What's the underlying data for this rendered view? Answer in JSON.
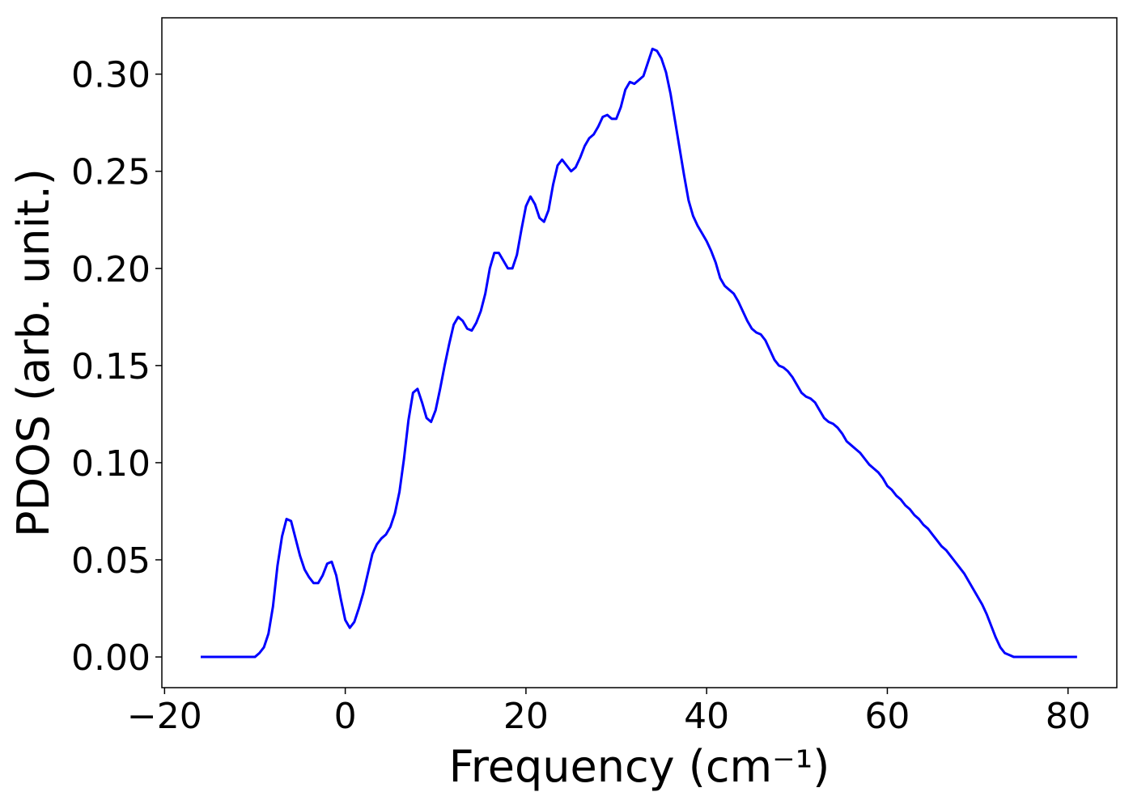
{
  "chart_data": {
    "type": "line",
    "xlabel": "Frequency (cm⁻¹)",
    "ylabel": "PDOS (arb. unit.)",
    "x": [
      -16,
      -15,
      -14,
      -13,
      -12,
      -11,
      -10,
      -9.5,
      -9,
      -8.5,
      -8,
      -7.5,
      -7,
      -6.5,
      -6,
      -5.5,
      -5,
      -4.5,
      -4,
      -3.5,
      -3,
      -2.5,
      -2,
      -1.5,
      -1,
      -0.5,
      0,
      0.5,
      1,
      1.5,
      2,
      2.5,
      3,
      3.5,
      4,
      4.5,
      5,
      5.5,
      6,
      6.5,
      7,
      7.5,
      8,
      8.5,
      9,
      9.5,
      10,
      10.5,
      11,
      11.5,
      12,
      12.5,
      13,
      13.5,
      14,
      14.5,
      15,
      15.5,
      16,
      16.5,
      17,
      17.5,
      18,
      18.5,
      19,
      19.5,
      20,
      20.5,
      21,
      21.5,
      22,
      22.5,
      23,
      23.5,
      24,
      24.5,
      25,
      25.5,
      26,
      26.5,
      27,
      27.5,
      28,
      28.5,
      29,
      29.5,
      30,
      30.5,
      31,
      31.5,
      32,
      32.5,
      33,
      33.5,
      34,
      34.5,
      35,
      35.5,
      36,
      36.5,
      37,
      37.5,
      38,
      38.5,
      39,
      39.5,
      40,
      40.5,
      41,
      41.5,
      42,
      42.5,
      43,
      43.5,
      44,
      44.5,
      45,
      45.5,
      46,
      46.5,
      47,
      47.5,
      48,
      48.5,
      49,
      49.5,
      50,
      50.5,
      51,
      51.5,
      52,
      52.5,
      53,
      53.5,
      54,
      54.5,
      55,
      55.5,
      56,
      56.5,
      57,
      57.5,
      58,
      58.5,
      59,
      59.5,
      60,
      60.5,
      61,
      61.5,
      62,
      62.5,
      63,
      63.5,
      64,
      64.5,
      65,
      65.5,
      66,
      66.5,
      67,
      67.5,
      68,
      68.5,
      69,
      69.5,
      70,
      70.5,
      71,
      71.5,
      72,
      72.5,
      73,
      73.5,
      74,
      75,
      76,
      77,
      78,
      79,
      80,
      81
    ],
    "series": [
      {
        "color": "#0000ff",
        "values": [
          0,
          0,
          0,
          0,
          0,
          0,
          0,
          0.002,
          0.005,
          0.012,
          0.026,
          0.047,
          0.062,
          0.071,
          0.07,
          0.061,
          0.052,
          0.045,
          0.041,
          0.038,
          0.038,
          0.042,
          0.048,
          0.049,
          0.042,
          0.03,
          0.019,
          0.015,
          0.018,
          0.025,
          0.033,
          0.043,
          0.053,
          0.058,
          0.061,
          0.063,
          0.067,
          0.074,
          0.085,
          0.102,
          0.122,
          0.136,
          0.138,
          0.131,
          0.123,
          0.121,
          0.127,
          0.138,
          0.15,
          0.161,
          0.171,
          0.175,
          0.173,
          0.169,
          0.168,
          0.172,
          0.178,
          0.187,
          0.2,
          0.208,
          0.208,
          0.204,
          0.2,
          0.2,
          0.207,
          0.22,
          0.232,
          0.237,
          0.233,
          0.226,
          0.224,
          0.23,
          0.243,
          0.253,
          0.256,
          0.253,
          0.25,
          0.252,
          0.257,
          0.263,
          0.267,
          0.269,
          0.273,
          0.278,
          0.279,
          0.277,
          0.277,
          0.283,
          0.292,
          0.296,
          0.295,
          0.297,
          0.299,
          0.306,
          0.313,
          0.312,
          0.308,
          0.301,
          0.29,
          0.276,
          0.262,
          0.248,
          0.235,
          0.227,
          0.222,
          0.218,
          0.214,
          0.209,
          0.203,
          0.195,
          0.191,
          0.189,
          0.187,
          0.183,
          0.178,
          0.173,
          0.169,
          0.167,
          0.166,
          0.163,
          0.158,
          0.153,
          0.15,
          0.149,
          0.147,
          0.144,
          0.14,
          0.136,
          0.134,
          0.133,
          0.131,
          0.127,
          0.123,
          0.121,
          0.12,
          0.118,
          0.115,
          0.111,
          0.109,
          0.107,
          0.105,
          0.102,
          0.099,
          0.097,
          0.095,
          0.092,
          0.088,
          0.086,
          0.083,
          0.081,
          0.078,
          0.076,
          0.073,
          0.071,
          0.068,
          0.066,
          0.063,
          0.06,
          0.057,
          0.055,
          0.052,
          0.049,
          0.046,
          0.043,
          0.039,
          0.035,
          0.031,
          0.027,
          0.022,
          0.016,
          0.01,
          0.005,
          0.002,
          0.001,
          0,
          0,
          0,
          0,
          0,
          0,
          0,
          0
        ]
      }
    ],
    "xlim": [
      -20.3,
      85.4
    ],
    "ylim": [
      -0.0158,
      0.329
    ],
    "xticks": [
      {
        "value": -20,
        "label": "−20"
      },
      0,
      20,
      40,
      60,
      80
    ],
    "yticks": [
      {
        "value": 0,
        "label": "0.00"
      },
      {
        "value": 0.05,
        "label": "0.05"
      },
      {
        "value": 0.1,
        "label": "0.10"
      },
      {
        "value": 0.15,
        "label": "0.15"
      },
      {
        "value": 0.2,
        "label": "0.20"
      },
      {
        "value": 0.25,
        "label": "0.25"
      },
      {
        "value": 0.3,
        "label": "0.30"
      }
    ],
    "grid": false
  }
}
